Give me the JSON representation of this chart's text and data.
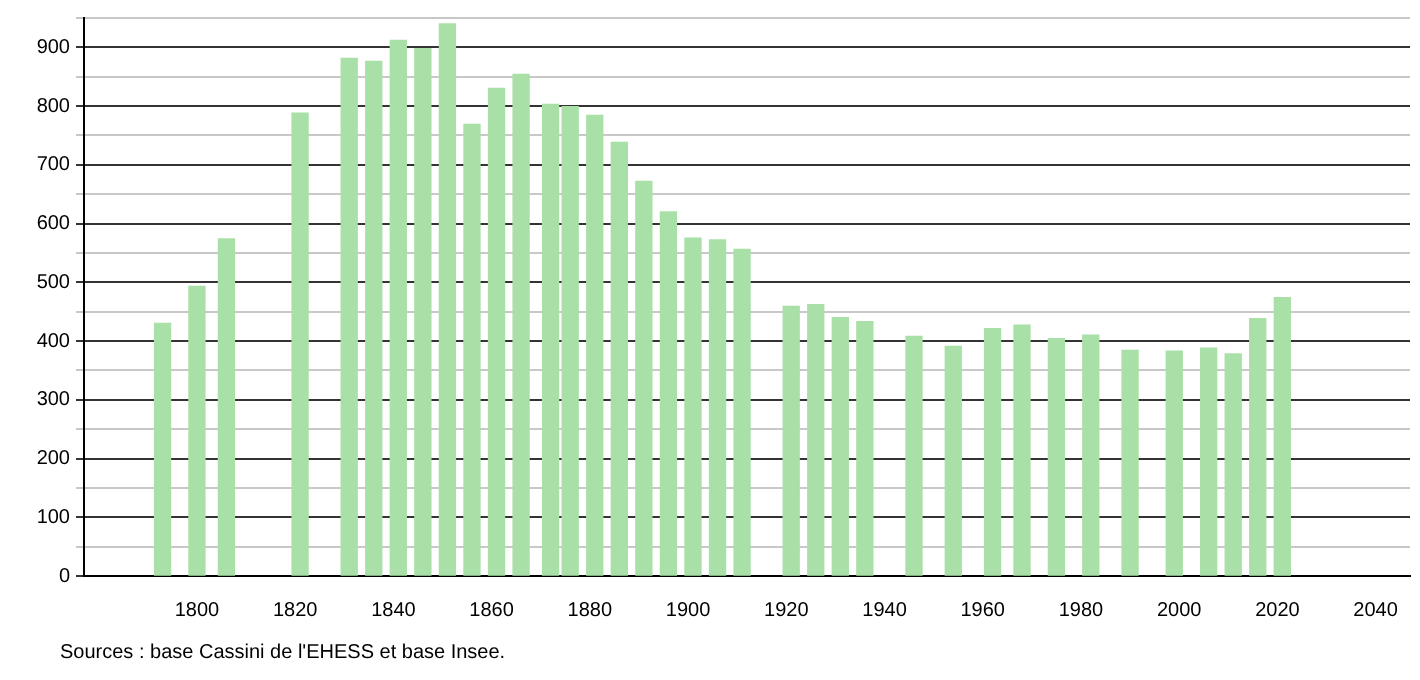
{
  "chart_data": {
    "type": "bar",
    "x": [
      1793,
      1800,
      1806,
      1821,
      1831,
      1836,
      1841,
      1846,
      1851,
      1856,
      1861,
      1866,
      1872,
      1876,
      1881,
      1886,
      1891,
      1896,
      1901,
      1906,
      1911,
      1921,
      1926,
      1931,
      1936,
      1946,
      1954,
      1962,
      1968,
      1975,
      1982,
      1990,
      1999,
      2006,
      2011,
      2016,
      2021
    ],
    "values": [
      430,
      493,
      574,
      788,
      881,
      876,
      912,
      898,
      940,
      769,
      830,
      854,
      803,
      799,
      784,
      738,
      672,
      620,
      575,
      572,
      556,
      459,
      462,
      440,
      433,
      408,
      391,
      421,
      427,
      404,
      410,
      384,
      383,
      388,
      378,
      438,
      474
    ],
    "color": "#a8e0a8",
    "xlim": [
      1777,
      2047
    ],
    "xticks": [
      1800,
      1820,
      1840,
      1860,
      1880,
      1900,
      1920,
      1940,
      1960,
      1980,
      2000,
      2020,
      2040
    ],
    "ylim": [
      0,
      950
    ],
    "yticks": [
      0,
      {
        "value": 50,
        "label": null
      },
      100,
      {
        "value": 150,
        "label": null
      },
      200,
      {
        "value": 250,
        "label": null
      },
      300,
      {
        "value": 350,
        "label": null
      },
      400,
      {
        "value": 450,
        "label": null
      },
      500,
      {
        "value": 550,
        "label": null
      },
      600,
      {
        "value": 650,
        "label": null
      },
      700,
      {
        "value": 750,
        "label": null
      },
      800,
      {
        "value": 850,
        "label": null
      },
      900,
      {
        "value": 950,
        "label": null
      }
    ],
    "grid": "y",
    "legend": false,
    "annotations": [
      "Sources : base Cassini de l'EHESS et base Insee."
    ]
  }
}
